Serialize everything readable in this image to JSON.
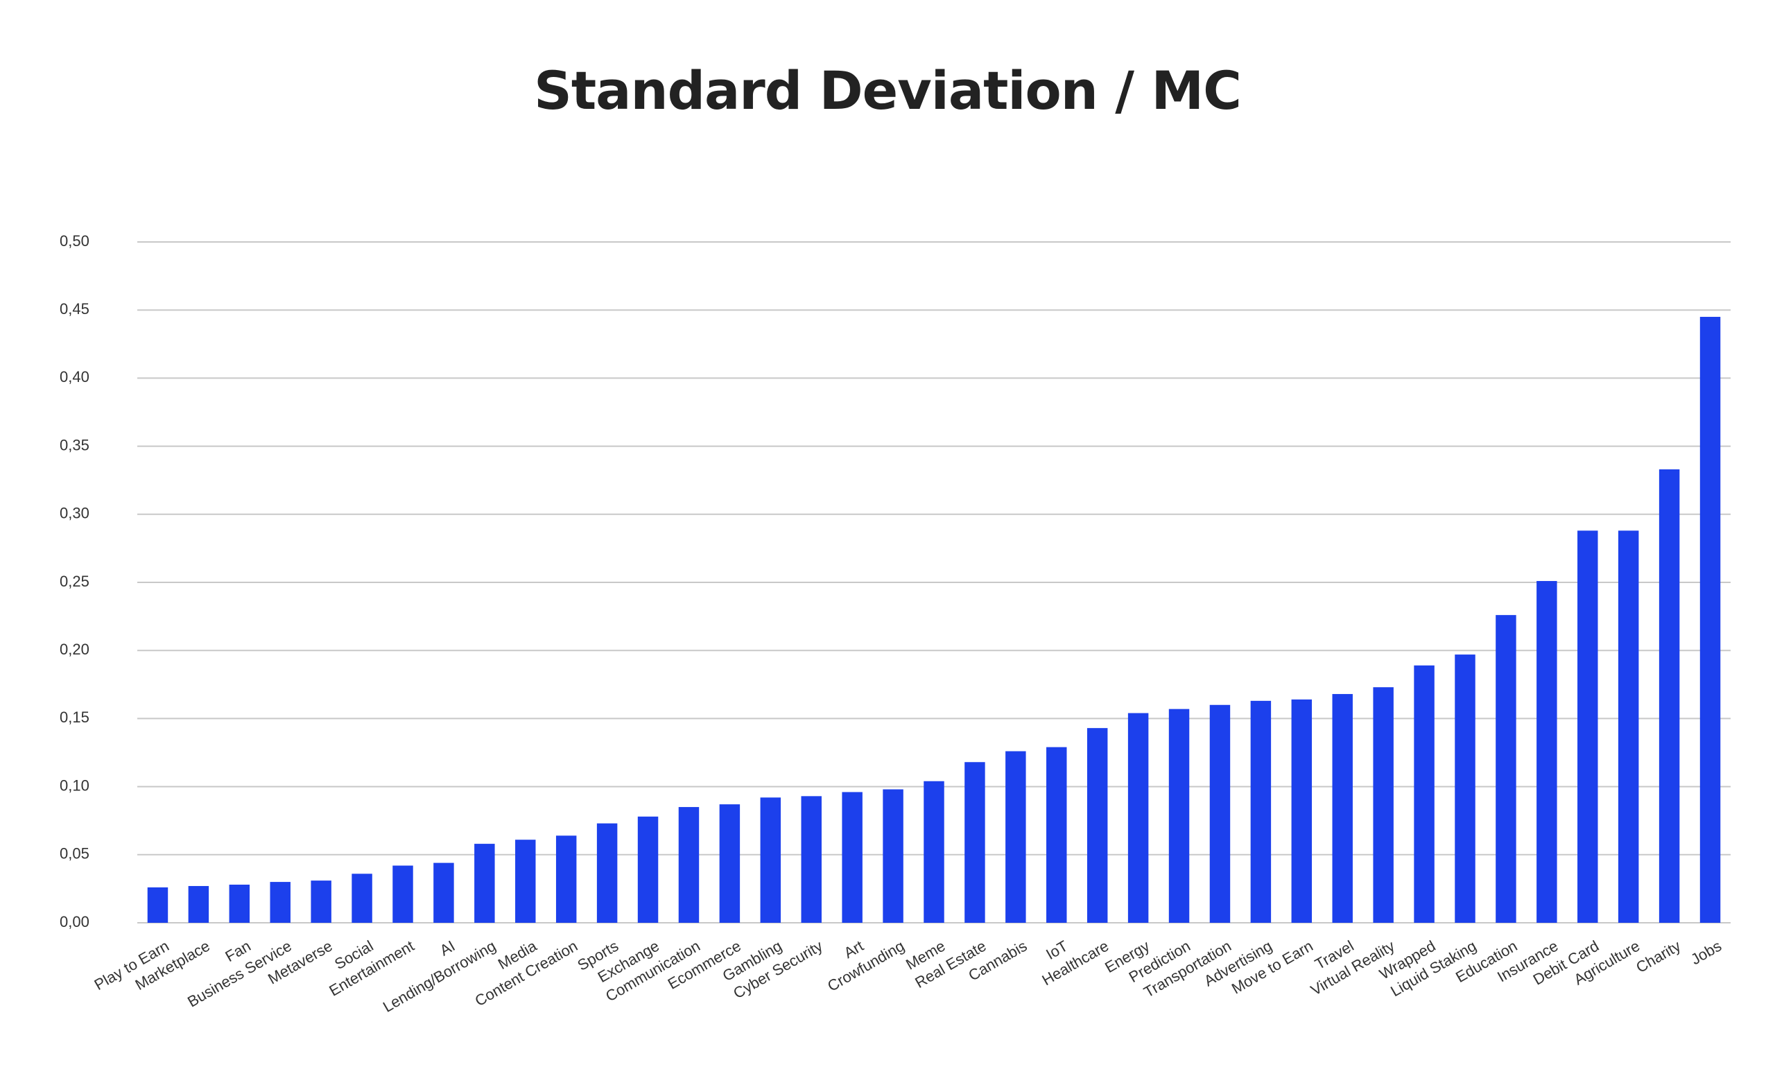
{
  "chart_data": {
    "type": "bar",
    "title": "Standard Deviation / MC",
    "xlabel": "",
    "ylabel": "",
    "ylim": [
      0,
      0.5
    ],
    "y_ticks": [
      "0,00",
      "0,05",
      "0,10",
      "0,15",
      "0,20",
      "0,25",
      "0,30",
      "0,35",
      "0,40",
      "0,45",
      "0,50"
    ],
    "grid": true,
    "bar_color": "#1c40ec",
    "categories": [
      "Play to Earn",
      "Marketplace",
      "Fan",
      "Business Service",
      "Metaverse",
      "Social",
      "Entertainment",
      "AI",
      "Lending/Borrowing",
      "Media",
      "Content Creation",
      "Sports",
      "Exchange",
      "Communication",
      "Ecommerce",
      "Gambling",
      "Cyber Security",
      "Art",
      "Crowfunding",
      "Meme",
      "Real Estate",
      "Cannabis",
      "IoT",
      "Healthcare",
      "Energy",
      "Prediction",
      "Transportation",
      "Advertising",
      "Move to Earn",
      "Travel",
      "Virtual Reality",
      "Wrapped",
      "Liquid Staking",
      "Education",
      "Insurance",
      "Debit Card",
      "Agriculture",
      "Charity",
      "Jobs"
    ],
    "values": [
      0.026,
      0.027,
      0.028,
      0.03,
      0.031,
      0.036,
      0.042,
      0.044,
      0.058,
      0.061,
      0.064,
      0.073,
      0.078,
      0.085,
      0.087,
      0.092,
      0.093,
      0.096,
      0.098,
      0.104,
      0.118,
      0.126,
      0.129,
      0.143,
      0.154,
      0.157,
      0.16,
      0.163,
      0.164,
      0.168,
      0.173,
      0.189,
      0.197,
      0.226,
      0.251,
      0.288,
      0.288,
      0.333,
      0.445
    ]
  }
}
